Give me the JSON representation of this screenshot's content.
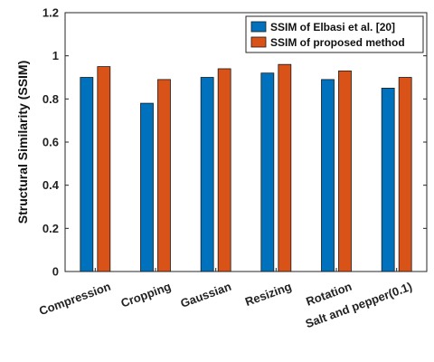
{
  "chart_data": {
    "type": "bar",
    "title": "",
    "xlabel": "",
    "ylabel": "Structural Similarity (SSIM)",
    "ylim": [
      0,
      1.2
    ],
    "yticks": [
      "0",
      "0.2",
      "0.4",
      "0.6",
      "0.8",
      "1",
      "1.2"
    ],
    "categories": [
      "Compression",
      "Cropping",
      "Gaussian",
      "Resizing",
      "Rotation",
      "Salt and pepper(0.1)"
    ],
    "series": [
      {
        "name": "SSIM of Elbasi et al. [20]",
        "color": "#0072BD",
        "values": [
          0.9,
          0.78,
          0.9,
          0.92,
          0.89,
          0.85
        ]
      },
      {
        "name": "SSIM of proposed method",
        "color": "#D95319",
        "values": [
          0.95,
          0.89,
          0.94,
          0.96,
          0.93,
          0.9
        ]
      }
    ],
    "legend": "top-right",
    "grid": false
  }
}
